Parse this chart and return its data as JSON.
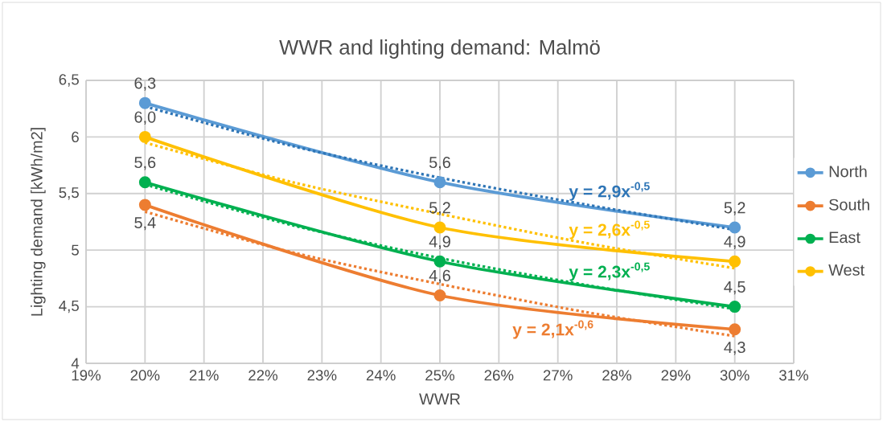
{
  "chart_data": {
    "type": "line",
    "title": "WWR and lighting demand: Malmö",
    "xlabel": "WWR",
    "ylabel": "Lighting demand [kWh/m2]",
    "x": [
      20,
      25,
      30
    ],
    "series": [
      {
        "name": "North",
        "color": "#5b9bd5",
        "values": [
          6.3,
          5.6,
          5.2
        ],
        "value_labels": [
          "6,3",
          "5,6",
          "5,2"
        ],
        "marker": "circle"
      },
      {
        "name": "South",
        "color": "#ed7d31",
        "values": [
          5.4,
          4.6,
          4.3
        ],
        "value_labels": [
          "5,4",
          "4,6",
          "4,3"
        ],
        "marker": "circle"
      },
      {
        "name": "East",
        "color": "#00b050",
        "values": [
          5.6,
          4.9,
          4.5
        ],
        "value_labels": [
          "5,6",
          "4,9",
          "4,5"
        ],
        "marker": "circle"
      },
      {
        "name": "West",
        "color": "#ffc000",
        "values": [
          6.0,
          5.2,
          4.9
        ],
        "value_labels": [
          "6,0",
          "5,2",
          "4,9"
        ],
        "marker": "circle"
      },
      {
        "name": "y = 2,9x$^{-0,5}$",
        "color": "#2e75b6",
        "type": "line",
        "line_style": "dotted",
        "marker": "none",
        "x": [
          20,
          22.5,
          25,
          27.5,
          30
        ],
        "values": [
          6.27,
          5.92,
          5.64,
          5.4,
          5.18
        ]
      },
      {
        "name": "y = 2,1x$^{-0,6}$",
        "color": "#ed7d31",
        "type": "line",
        "line_style": "dotted",
        "marker": "none",
        "x": [
          20,
          22.5,
          25,
          27.5,
          30
        ],
        "values": [
          5.34,
          4.98,
          4.7,
          4.45,
          4.24
        ]
      },
      {
        "name": "y = 2,3x$^{-0,5}$",
        "color": "#00b050",
        "type": "line",
        "line_style": "dotted",
        "marker": "none",
        "x": [
          20,
          22.5,
          25,
          27.5,
          30
        ],
        "values": [
          5.58,
          5.22,
          4.93,
          4.69,
          4.48
        ]
      },
      {
        "name": "y = 2,6x$^{-0,5}$",
        "color": "#ffc000",
        "type": "line",
        "line_style": "dotted",
        "marker": "none",
        "x": [
          20,
          22.5,
          25,
          27.5,
          30
        ],
        "values": [
          5.95,
          5.6,
          5.32,
          5.06,
          4.84
        ]
      }
    ],
    "xlim": [
      19,
      31
    ],
    "xticks": [
      {
        "value": 19,
        "label": "19%"
      },
      {
        "value": 20,
        "label": "20%"
      },
      {
        "value": 21,
        "label": "21%"
      },
      {
        "value": 22,
        "label": "22%"
      },
      {
        "value": 23,
        "label": "23%"
      },
      {
        "value": 24,
        "label": "24%"
      },
      {
        "value": 25,
        "label": "25%"
      },
      {
        "value": 26,
        "label": "26%"
      },
      {
        "value": 27,
        "label": "27%"
      },
      {
        "value": 28,
        "label": "28%"
      },
      {
        "value": 29,
        "label": "29%"
      },
      {
        "value": 30,
        "label": "30%"
      },
      {
        "value": 31,
        "label": "31%"
      }
    ],
    "ylim": [
      4,
      6.5
    ],
    "yticks": [
      4,
      {
        "value": 4.5,
        "label": "4,5"
      },
      5,
      {
        "value": 5.5,
        "label": "5,5"
      },
      6,
      {
        "value": 6.5,
        "label": "6,5"
      }
    ],
    "grid": true,
    "legend": "right"
  }
}
